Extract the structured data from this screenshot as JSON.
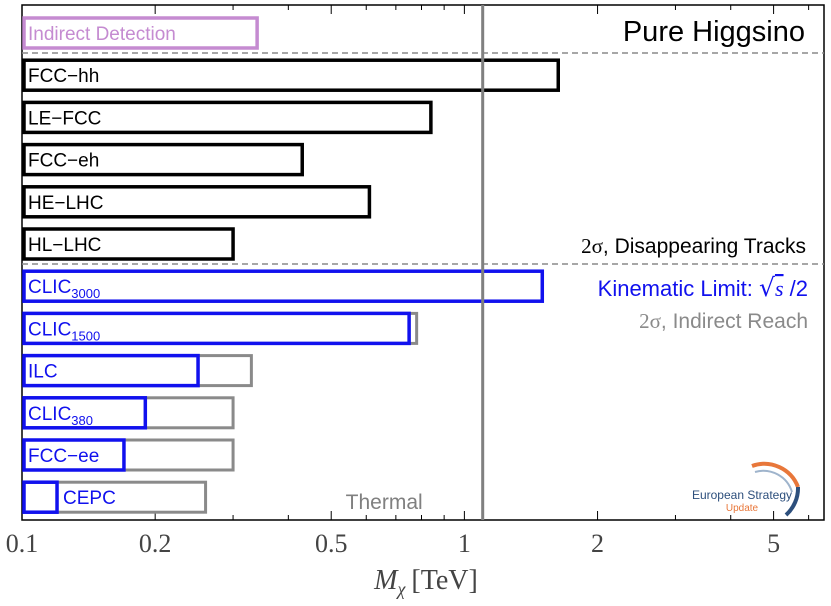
{
  "chart_data": {
    "type": "bar",
    "title": "Pure Higgsino",
    "xlabel": "M_χ [TeV]",
    "xlabel_parts": {
      "sym": "M",
      "sub": "χ",
      "unit": "[TeV]"
    },
    "xscale": "log",
    "xlim": [
      0.1,
      6.5
    ],
    "xticks": [
      {
        "value": 0.1,
        "label": "0.1"
      },
      {
        "value": 0.2,
        "label": "0.2"
      },
      {
        "value": 0.5,
        "label": "0.5"
      },
      {
        "value": 1,
        "label": "1"
      },
      {
        "value": 2,
        "label": "2"
      },
      {
        "value": 5,
        "label": "5"
      }
    ],
    "thermal_mass": 1.1,
    "thermal_label": "Thermal",
    "groups": [
      {
        "name": "Indirect Detection",
        "color": "#c58bd1",
        "rows": [
          {
            "label": "Indirect Detection",
            "value": 0.34
          }
        ]
      },
      {
        "name": "2σ, Disappearing Tracks",
        "color": "#000000",
        "rows": [
          {
            "label": "FCC−hh",
            "value": 1.63
          },
          {
            "label": "LE−FCC",
            "value": 0.84
          },
          {
            "label": "FCC−eh",
            "value": 0.43
          },
          {
            "label": "HE−LHC",
            "value": 0.61
          },
          {
            "label": "HL−LHC",
            "value": 0.3
          }
        ]
      },
      {
        "name": "Kinematic Limit / 2σ Indirect Reach",
        "rows": [
          {
            "label_main": "CLIC",
            "label_sub": "3000",
            "value": 1.5,
            "indirect": null
          },
          {
            "label_main": "CLIC",
            "label_sub": "1500",
            "value": 0.75,
            "indirect": 0.78
          },
          {
            "label_main": "ILC",
            "label_sub": "",
            "value": 0.25,
            "indirect": 0.33
          },
          {
            "label_main": "CLIC",
            "label_sub": "380",
            "value": 0.19,
            "indirect": 0.3
          },
          {
            "label_main": "FCC−ee",
            "label_sub": "",
            "value": 0.17,
            "indirect": 0.3
          },
          {
            "label_main": "CEPC",
            "label_sub": "",
            "value": 0.12,
            "indirect": 0.26
          }
        ]
      }
    ],
    "legend": {
      "tracks": {
        "sigma": "2σ",
        "text": ", Disappearing Tracks"
      },
      "kinematic": {
        "text": "Kinematic Limit: ",
        "root": "√",
        "s": "s",
        "tail": " /2"
      },
      "indirect": {
        "sigma": "2σ",
        "text": ", Indirect Reach"
      }
    },
    "colors": {
      "collider_kinematic": "#1111ee",
      "collider_indirect": "#8a8a8a",
      "tracks": "#000000",
      "indirect_detection": "#c58bd1",
      "thermal_line": "#808080",
      "dash": "#8a8a8a"
    }
  },
  "logo": {
    "line1": "European Strategy",
    "line2": "Update",
    "colors": {
      "text1": "#2d4f7c",
      "text2": "#e8773a",
      "arc_orange": "#e8773a",
      "arc_blue": "#2d4f7c",
      "arc_light": "#9fb4cc"
    }
  }
}
